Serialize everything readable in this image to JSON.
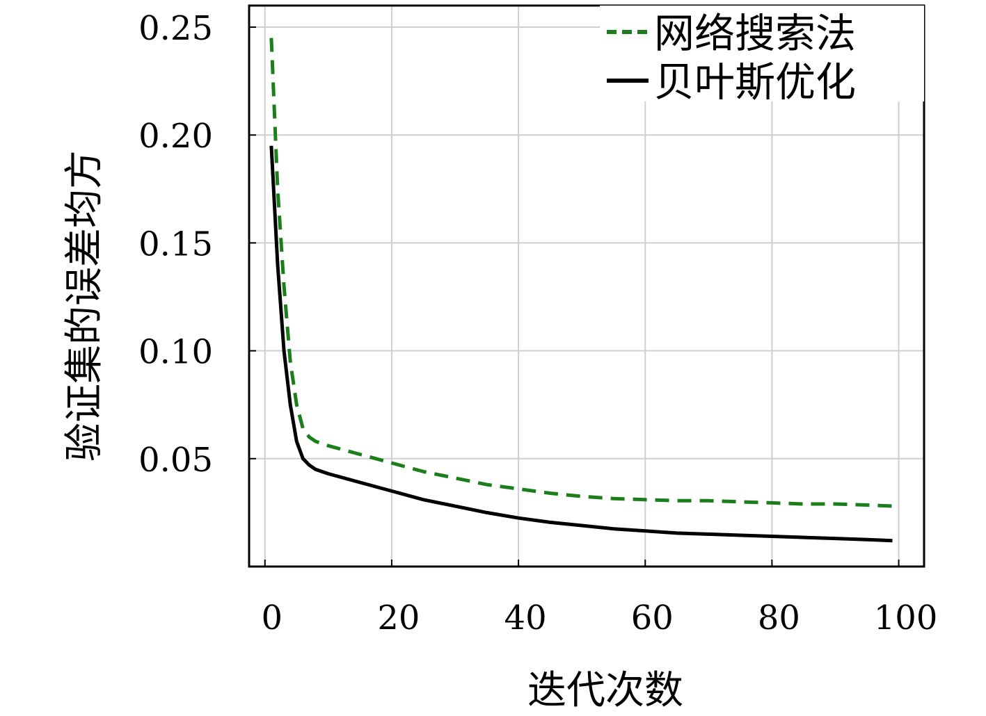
{
  "chart_data": {
    "type": "line",
    "xlabel": "迭代次数",
    "ylabel": "验证集的误差均方",
    "xlim": [
      -2.5,
      104
    ],
    "ylim": [
      0.0,
      0.26
    ],
    "x_ticks": [
      0,
      20,
      40,
      60,
      80,
      100
    ],
    "x_tick_labels": [
      "0",
      "20",
      "40",
      "60",
      "80",
      "100"
    ],
    "y_ticks": [
      0.05,
      0.1,
      0.15,
      0.2,
      0.25
    ],
    "y_tick_labels": [
      "0.05",
      "0.10",
      "0.15",
      "0.20",
      "0.25"
    ],
    "grid": true,
    "legend_position": "top-right",
    "series": [
      {
        "name": "网络搜索法",
        "style": "dashed",
        "color": "#1a7f1a",
        "x": [
          1,
          2,
          3,
          4,
          5,
          6,
          7,
          8,
          10,
          15,
          20,
          25,
          30,
          35,
          40,
          45,
          50,
          55,
          60,
          65,
          70,
          75,
          80,
          85,
          90,
          95,
          99
        ],
        "y": [
          0.245,
          0.175,
          0.13,
          0.095,
          0.075,
          0.064,
          0.06,
          0.058,
          0.056,
          0.052,
          0.048,
          0.044,
          0.041,
          0.038,
          0.036,
          0.034,
          0.0325,
          0.0315,
          0.031,
          0.0305,
          0.0305,
          0.03,
          0.0295,
          0.029,
          0.029,
          0.0285,
          0.028
        ]
      },
      {
        "name": "贝叶斯优化",
        "style": "solid",
        "color": "#000000",
        "x": [
          1,
          2,
          3,
          4,
          5,
          6,
          7,
          8,
          10,
          15,
          20,
          25,
          30,
          35,
          40,
          45,
          50,
          55,
          60,
          65,
          70,
          75,
          80,
          85,
          90,
          95,
          99
        ],
        "y": [
          0.195,
          0.14,
          0.1,
          0.075,
          0.058,
          0.05,
          0.047,
          0.045,
          0.043,
          0.039,
          0.035,
          0.031,
          0.028,
          0.025,
          0.0225,
          0.0205,
          0.019,
          0.0175,
          0.0165,
          0.0155,
          0.015,
          0.0145,
          0.014,
          0.0135,
          0.013,
          0.0125,
          0.012
        ]
      }
    ]
  }
}
